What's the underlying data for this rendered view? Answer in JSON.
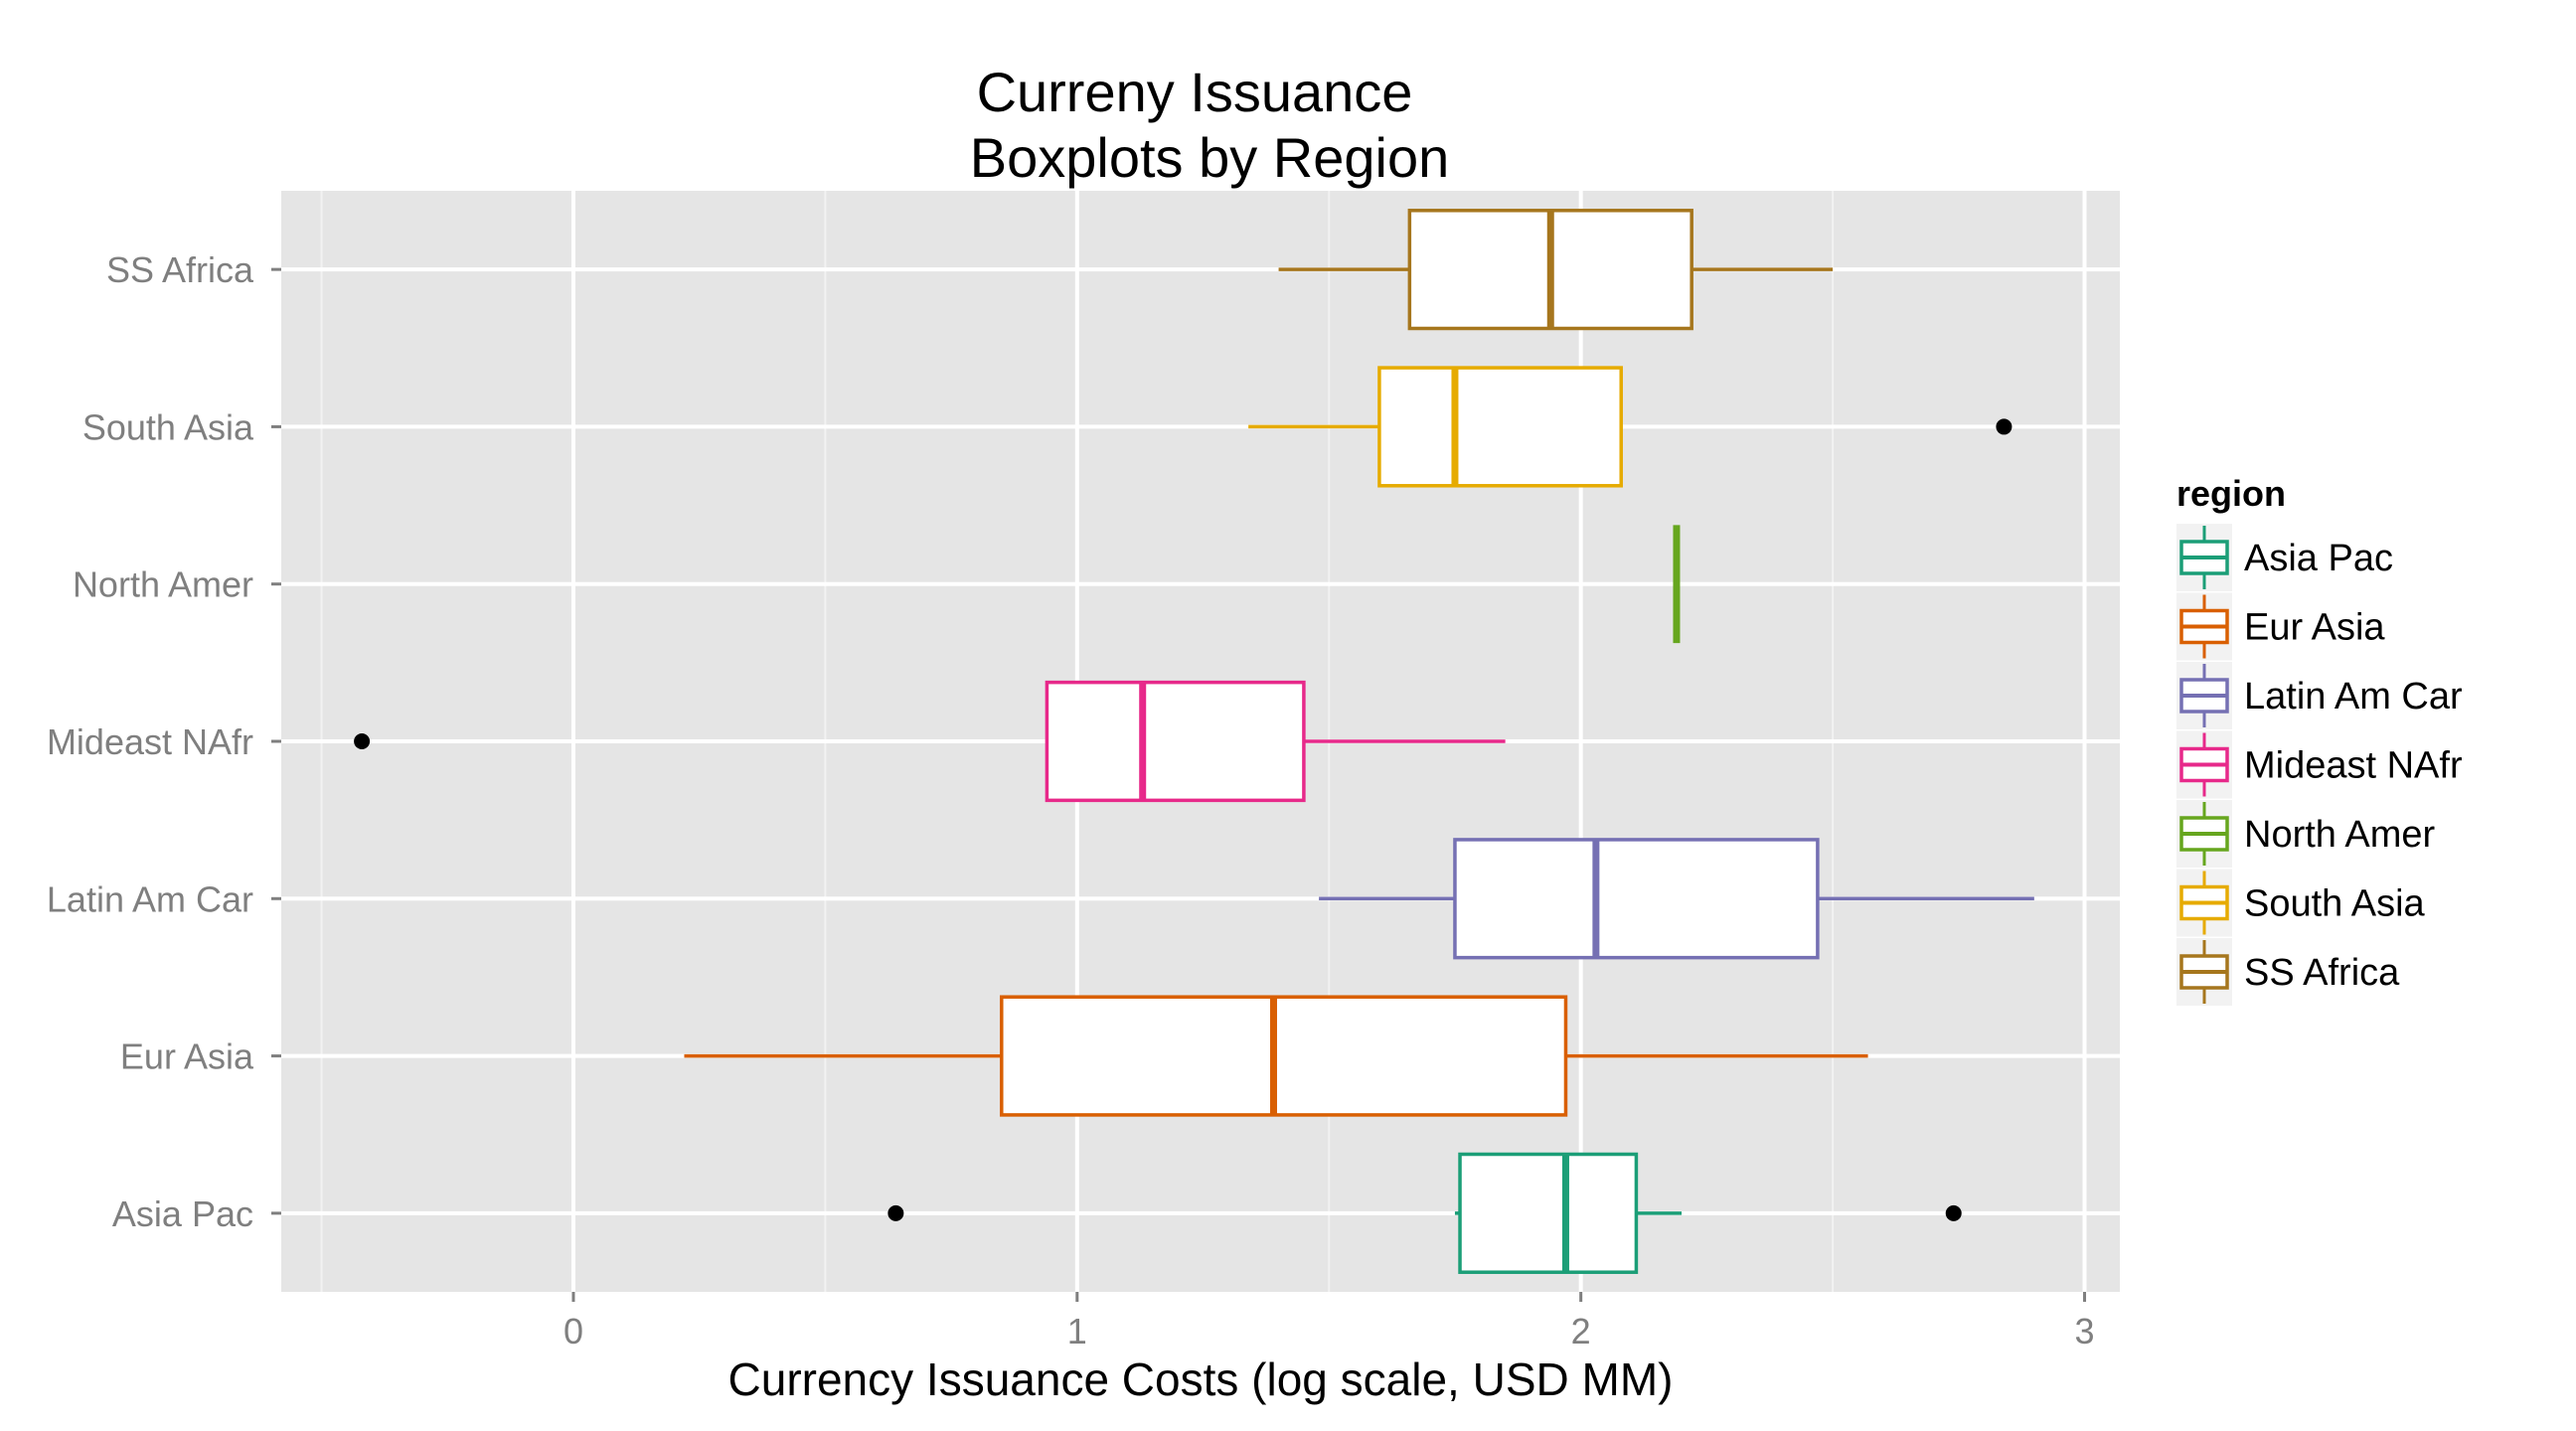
{
  "chart_data": {
    "type": "boxplot",
    "title": "Curreny Issuance",
    "subtitle": "Boxplots by Region",
    "xlabel": "Currency Issuance Costs (log scale, USD MM)",
    "ylabel": "",
    "xlim": [
      -0.58,
      3.07
    ],
    "x_ticks": [
      0,
      1,
      2,
      3
    ],
    "x_tick_labels": [
      "0",
      "1",
      "2",
      "3"
    ],
    "grid": true,
    "legend": {
      "title": "region",
      "position": "right",
      "entries": [
        "Asia Pac",
        "Eur Asia",
        "Latin Am Car",
        "Mideast NAfr",
        "North Amer",
        "South Asia",
        "SS Africa"
      ]
    },
    "categories": [
      "Asia Pac",
      "Eur Asia",
      "Latin Am Car",
      "Mideast NAfr",
      "North Amer",
      "South Asia",
      "SS Africa"
    ],
    "series": [
      {
        "name": "Asia Pac",
        "color": "#1b9e77",
        "whisker_low": 1.75,
        "q1": 1.76,
        "median": 1.97,
        "q3": 2.11,
        "whisker_high": 2.2,
        "outliers": [
          0.64,
          2.74
        ]
      },
      {
        "name": "Eur Asia",
        "color": "#d95f02",
        "whisker_low": 0.22,
        "q1": 0.85,
        "median": 1.39,
        "q3": 1.97,
        "whisker_high": 2.57,
        "outliers": []
      },
      {
        "name": "Latin Am Car",
        "color": "#7570b3",
        "whisker_low": 1.48,
        "q1": 1.75,
        "median": 2.03,
        "q3": 2.47,
        "whisker_high": 2.9,
        "outliers": []
      },
      {
        "name": "Mideast NAfr",
        "color": "#e7298a",
        "whisker_low": 0.94,
        "q1": 0.94,
        "median": 1.13,
        "q3": 1.45,
        "whisker_high": 1.85,
        "outliers": [
          -0.42
        ]
      },
      {
        "name": "North Amer",
        "color": "#66a61e",
        "whisker_low": 2.19,
        "q1": 2.19,
        "median": 2.19,
        "q3": 2.19,
        "whisker_high": 2.19,
        "outliers": []
      },
      {
        "name": "South Asia",
        "color": "#e6ab02",
        "whisker_low": 1.34,
        "q1": 1.6,
        "median": 1.75,
        "q3": 2.08,
        "whisker_high": 2.08,
        "outliers": [
          2.84
        ]
      },
      {
        "name": "SS Africa",
        "color": "#a6761d",
        "whisker_low": 1.4,
        "q1": 1.66,
        "median": 1.94,
        "q3": 2.22,
        "whisker_high": 2.5,
        "outliers": []
      }
    ]
  }
}
